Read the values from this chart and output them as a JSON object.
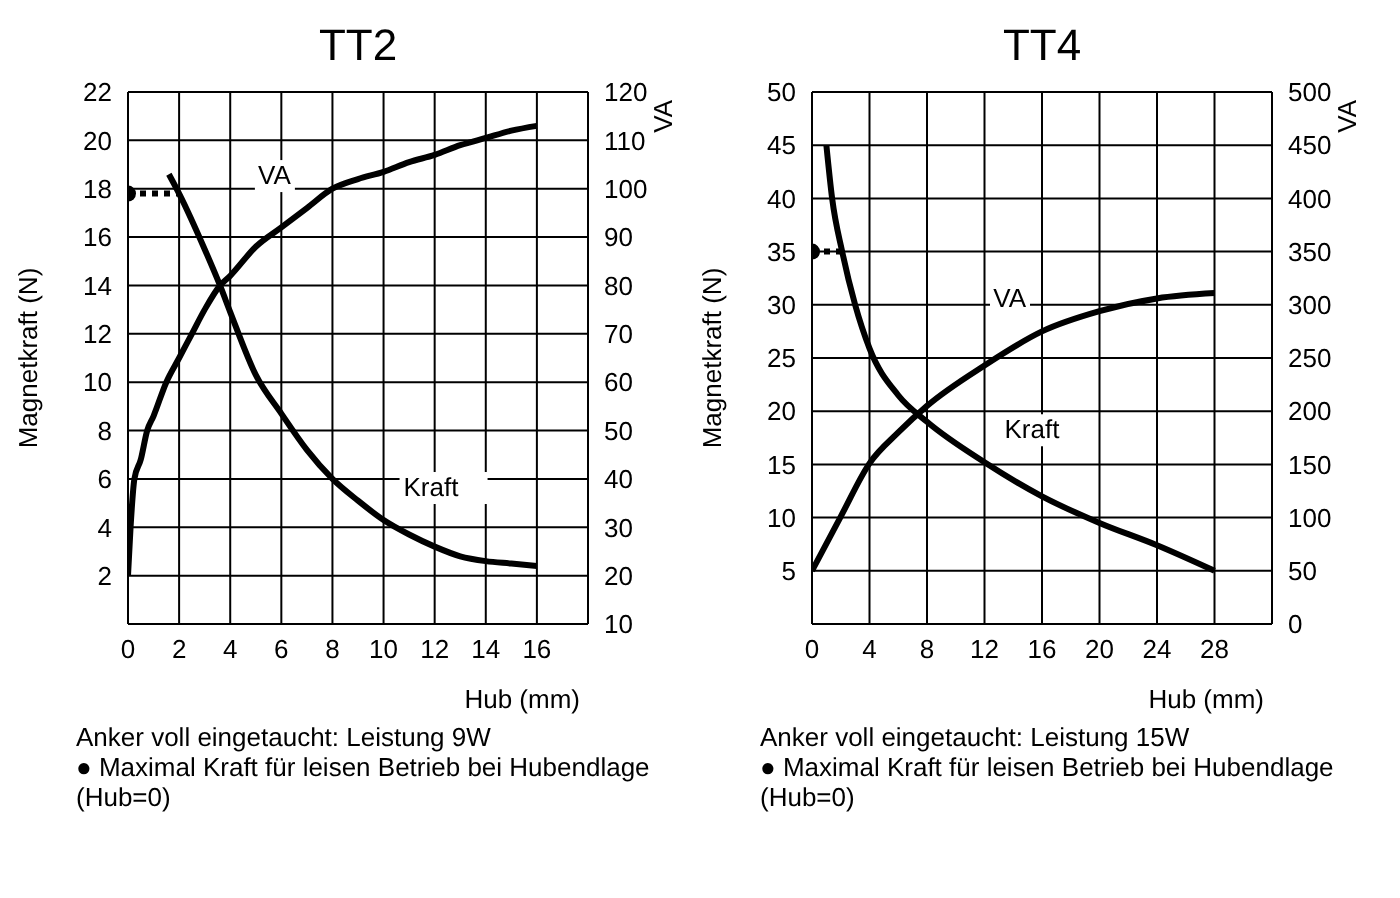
{
  "chart_data": [
    {
      "type": "line",
      "title": "TT2",
      "xlabel": "Hub (mm)",
      "ylabel": "Magnetkraft  (N)",
      "y2label": "VA",
      "xlim": [
        0,
        18
      ],
      "xticks": [
        0,
        2,
        4,
        6,
        8,
        10,
        12,
        14,
        16
      ],
      "ylim": [
        0,
        22
      ],
      "yticks": [
        2,
        4,
        6,
        8,
        10,
        12,
        14,
        16,
        18,
        20,
        22
      ],
      "y2lim": [
        10,
        120
      ],
      "y2ticks": [
        10,
        20,
        30,
        40,
        50,
        60,
        70,
        80,
        90,
        100,
        110,
        120
      ],
      "grid": true,
      "line_style": "solid",
      "series": [
        {
          "name": "Kraft",
          "color": "#000000",
          "x": [
            1.6,
            2,
            3,
            3.6,
            4,
            5,
            6,
            7,
            8,
            9,
            10,
            11,
            12,
            13,
            14,
            15,
            16
          ],
          "values": [
            18.6,
            17.8,
            15.5,
            14,
            12.9,
            10.3,
            8.7,
            7.2,
            6,
            5.1,
            4.3,
            3.7,
            3.2,
            2.8,
            2.6,
            2.5,
            2.4
          ]
        },
        {
          "name": "VA",
          "axis": "y2",
          "color": "#000000",
          "x": [
            0,
            0.1,
            0.25,
            0.5,
            0.75,
            1,
            1.5,
            2,
            2.5,
            3,
            3.6,
            4,
            5,
            6,
            7,
            8,
            9,
            10,
            11,
            12,
            13,
            14,
            15,
            16
          ],
          "values": [
            20,
            30,
            40,
            44,
            50,
            53,
            60,
            65,
            70,
            75,
            80,
            82,
            88,
            92,
            96,
            100,
            102,
            103.5,
            105.5,
            107,
            109,
            110.5,
            112,
            113
          ]
        },
        {
          "color": "#000000",
          "line_style": "dotted",
          "x": [
            0,
            2
          ],
          "values": [
            17.8,
            17.8
          ]
        },
        {
          "type": "scatter",
          "color": "#000000",
          "x": [
            0
          ],
          "values": [
            17.8
          ]
        }
      ],
      "annotations": [
        "Anker voll eingetaucht: Leistung 9W",
        "● Maximal Kraft für leisen Betrieb bei Hubendlage (Hub=0)"
      ]
    },
    {
      "type": "line",
      "title": "TT4",
      "xlabel": "Hub (mm)",
      "ylabel": "Magnetkraft (N)",
      "y2label": "VA",
      "xlim": [
        0,
        32
      ],
      "xticks": [
        0,
        4,
        8,
        12,
        16,
        20,
        24,
        28
      ],
      "ylim": [
        0,
        50
      ],
      "yticks": [
        5,
        10,
        15,
        20,
        25,
        30,
        35,
        40,
        45,
        50
      ],
      "y2lim": [
        0,
        500
      ],
      "y2ticks": [
        0,
        50,
        100,
        150,
        200,
        250,
        300,
        350,
        400,
        450,
        500
      ],
      "grid": true,
      "line_style": "solid",
      "series": [
        {
          "name": "Kraft",
          "color": "#000000",
          "x": [
            1,
            1.4,
            2.1,
            3,
            4,
            6,
            8,
            12,
            16,
            20,
            24,
            28
          ],
          "values": [
            45,
            40,
            35,
            30,
            25.9,
            21.5,
            19,
            15.2,
            12,
            9.5,
            7.4,
            5
          ]
        },
        {
          "name": "VA",
          "axis": "y2",
          "color": "#000000",
          "x": [
            0,
            2,
            4,
            6,
            8,
            12,
            16,
            20,
            24,
            28
          ],
          "values": [
            50,
            101,
            151,
            180,
            205,
            243,
            275,
            294,
            306,
            311
          ]
        },
        {
          "color": "#000000",
          "line_style": "dotted",
          "x": [
            0,
            2.1
          ],
          "values": [
            35,
            35
          ]
        },
        {
          "type": "scatter",
          "color": "#000000",
          "x": [
            0
          ],
          "values": [
            35
          ]
        }
      ],
      "annotations": [
        "Anker voll eingetaucht: Leistung 15W",
        "● Maximal Kraft für leisen Betrieb bei Hubendlage (Hub=0)"
      ]
    }
  ]
}
